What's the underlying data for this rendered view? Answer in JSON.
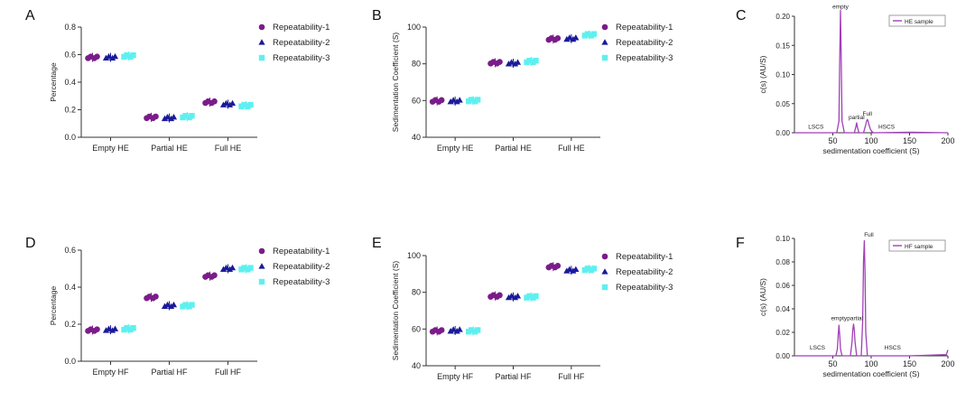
{
  "colors": {
    "rep1": "#7b1c8a",
    "rep2": "#1a1a9a",
    "rep3": "#5ef0f0",
    "curve": "#a23fb8"
  },
  "legend_labels": [
    "Repeatability-1",
    "Repeatability-2",
    "Repeatability-3"
  ],
  "chart_data": [
    {
      "panel": "A",
      "type": "scatter",
      "title": "",
      "xlabel": "",
      "ylabel": "Percentage",
      "ylim": [
        0,
        0.8
      ],
      "yticks": [
        "0.0",
        "0.2",
        "0.4",
        "0.6",
        "0.8"
      ],
      "categories": [
        "Empty HE",
        "Partial HE",
        "Full HE"
      ],
      "series": [
        {
          "name": "Repeatability-1",
          "values": [
            0.58,
            0.145,
            0.255
          ]
        },
        {
          "name": "Repeatability-2",
          "values": [
            0.58,
            0.14,
            0.24
          ]
        },
        {
          "name": "Repeatability-3",
          "values": [
            0.59,
            0.15,
            0.23
          ]
        }
      ]
    },
    {
      "panel": "B",
      "type": "scatter",
      "title": "",
      "xlabel": "",
      "ylabel": "Sedimentation Coefficient (S)",
      "ylim": [
        40,
        100
      ],
      "yticks": [
        "40",
        "60",
        "80",
        "100"
      ],
      "categories": [
        "Empty HE",
        "Partial HE",
        "Full HE"
      ],
      "series": [
        {
          "name": "Repeatability-1",
          "values": [
            59.8,
            80.6,
            93.5
          ]
        },
        {
          "name": "Repeatability-2",
          "values": [
            59.7,
            80.3,
            93.7
          ]
        },
        {
          "name": "Repeatability-3",
          "values": [
            60.0,
            81.3,
            95.8
          ]
        }
      ]
    },
    {
      "panel": "C",
      "type": "line",
      "title": "",
      "xlabel": "sedimentation coefficient (S)",
      "ylabel": "c(s) (AU/S)",
      "xlim": [
        0,
        200
      ],
      "xticks": [
        "50",
        "100",
        "150",
        "200"
      ],
      "ylim": [
        0,
        0.2
      ],
      "yticks": [
        "0.00",
        "0.05",
        "0.10",
        "0.15",
        "0.20"
      ],
      "legend": "HE sample",
      "x": [
        0,
        55,
        58,
        59,
        60,
        61,
        62,
        65,
        78,
        80,
        81,
        82,
        84,
        90,
        93,
        94,
        95,
        96,
        97,
        99,
        101,
        103,
        105,
        150,
        200
      ],
      "y": [
        0,
        0,
        0.02,
        0.12,
        0.21,
        0.12,
        0.02,
        0,
        0,
        0.01,
        0.017,
        0.01,
        0,
        0,
        0.014,
        0.02,
        0.023,
        0.02,
        0.014,
        0.006,
        0.002,
        0,
        0,
        0.001,
        0
      ],
      "annotations": [
        {
          "text": "empty",
          "x": 60,
          "y": 0.21
        },
        {
          "text": "partial",
          "x": 81,
          "y": 0.02
        },
        {
          "text": "Full",
          "x": 95,
          "y": 0.026
        },
        {
          "text": "LSCS",
          "x": 28,
          "y": 0.004
        },
        {
          "text": "HSCS",
          "x": 120,
          "y": 0.004
        }
      ]
    },
    {
      "panel": "D",
      "type": "scatter",
      "title": "",
      "xlabel": "",
      "ylabel": "Percentage",
      "ylim": [
        0,
        0.6
      ],
      "yticks": [
        "0.0",
        "0.2",
        "0.4",
        "0.6"
      ],
      "categories": [
        "Empty HF",
        "Partial HF",
        "Full HF"
      ],
      "series": [
        {
          "name": "Repeatability-1",
          "values": [
            0.168,
            0.345,
            0.46
          ]
        },
        {
          "name": "Repeatability-2",
          "values": [
            0.17,
            0.3,
            0.5
          ]
        },
        {
          "name": "Repeatability-3",
          "values": [
            0.175,
            0.3,
            0.5
          ]
        }
      ]
    },
    {
      "panel": "E",
      "type": "scatter",
      "title": "",
      "xlabel": "",
      "ylabel": "Sedimentation Coefficient (S)",
      "ylim": [
        40,
        100
      ],
      "yticks": [
        "40",
        "60",
        "80",
        "100"
      ],
      "categories": [
        "Empty HF",
        "Partial HF",
        "Full HF"
      ],
      "series": [
        {
          "name": "Repeatability-1",
          "values": [
            59.0,
            78.0,
            94.0
          ]
        },
        {
          "name": "Repeatability-2",
          "values": [
            59.2,
            77.5,
            92.0
          ]
        },
        {
          "name": "Repeatability-3",
          "values": [
            59.0,
            77.5,
            92.5
          ]
        }
      ]
    },
    {
      "panel": "F",
      "type": "line",
      "title": "",
      "xlabel": "sedimentation coefficient (S)",
      "ylabel": "c(s) (AU/S)",
      "xlim": [
        0,
        200
      ],
      "xticks": [
        "50",
        "100",
        "150",
        "200"
      ],
      "ylim": [
        0,
        0.1
      ],
      "yticks": [
        "0.00",
        "0.02",
        "0.04",
        "0.06",
        "0.08",
        "0.10"
      ],
      "legend": "HF sample",
      "x": [
        0,
        54,
        56,
        57,
        58,
        59,
        60,
        62,
        73,
        75,
        76,
        77,
        78,
        79,
        81,
        87,
        89,
        90,
        91,
        92,
        93,
        95,
        150,
        198,
        200
      ],
      "y": [
        0,
        0,
        0.006,
        0.018,
        0.026,
        0.018,
        0.006,
        0,
        0,
        0.012,
        0.022,
        0.027,
        0.022,
        0.012,
        0,
        0,
        0.03,
        0.08,
        0.098,
        0.07,
        0.02,
        0,
        0,
        0.001,
        0.005
      ],
      "annotations": [
        {
          "text": "empty",
          "x": 58,
          "y": 0.029
        },
        {
          "text": "partial",
          "x": 79,
          "y": 0.029
        },
        {
          "text": "Full",
          "x": 97,
          "y": 0.1
        },
        {
          "text": "LSCS",
          "x": 30,
          "y": 0.004
        },
        {
          "text": "HSCS",
          "x": 128,
          "y": 0.004
        }
      ]
    }
  ]
}
